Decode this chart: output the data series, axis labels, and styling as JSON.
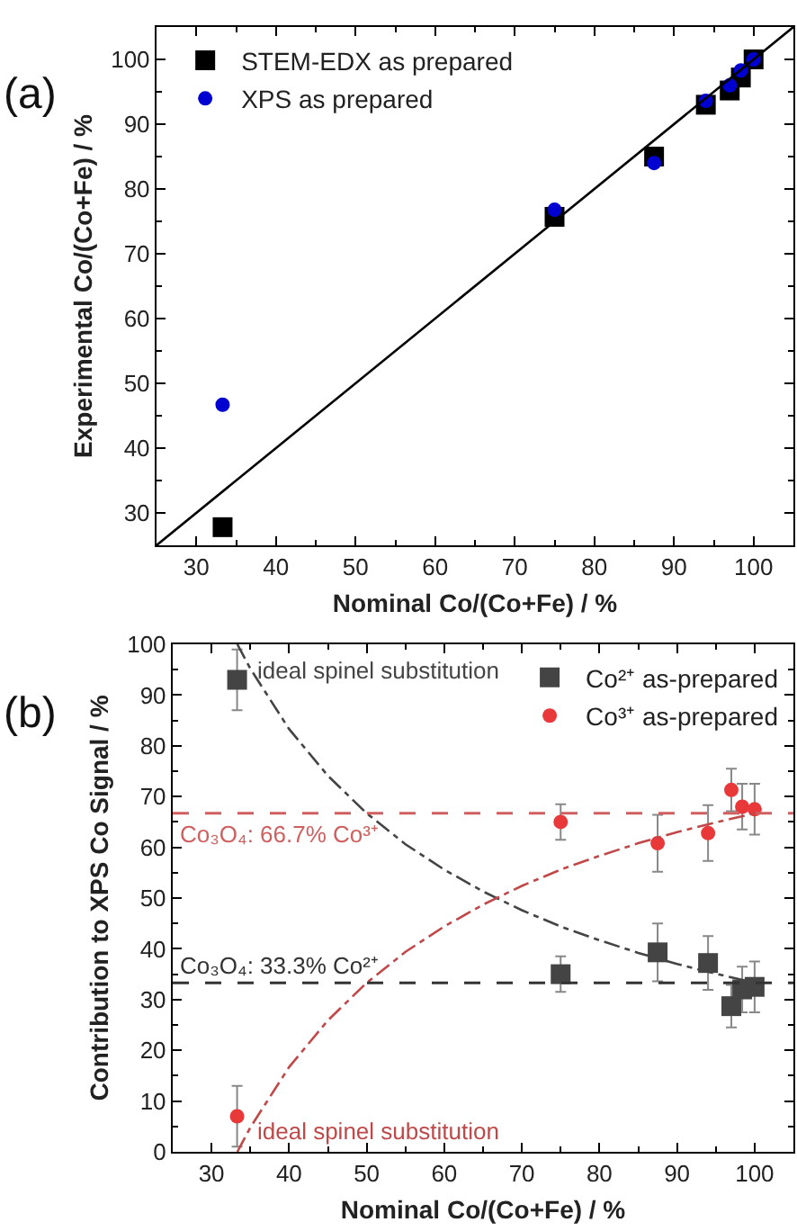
{
  "chart_data": [
    {
      "type": "scatter",
      "xlabel": "Nominal Co/(Co+Fe) / %",
      "ylabel": "Experimental Co/(Co+Fe) / %",
      "annotations": [
        "(a)"
      ],
      "xlim": [
        25,
        105
      ],
      "xticks": [
        30,
        40,
        50,
        60,
        70,
        80,
        90,
        100
      ],
      "ylim": [
        25,
        105
      ],
      "yticks": [
        30,
        40,
        50,
        60,
        70,
        80,
        90,
        100
      ],
      "legend": "top left",
      "series": [
        {
          "name": "STEM-EDX as prepared",
          "color": "#000000",
          "marker": "square",
          "x": [
            33.3,
            75,
            87.5,
            94,
            97,
            98.4,
            100
          ],
          "values": [
            27.8,
            75.7,
            85,
            93,
            95.2,
            97.2,
            100
          ]
        },
        {
          "name": "XPS as prepared",
          "color": "#0000d0",
          "marker": "circle",
          "x": [
            33.3,
            75,
            87.5,
            94,
            97,
            98.4,
            100
          ],
          "values": [
            46.7,
            76.8,
            84,
            93.6,
            96,
            98.3,
            100
          ]
        },
        {
          "type": "line",
          "color": "#000000",
          "marker": "none",
          "line_style": "solid",
          "x": [
            25,
            105
          ],
          "values": [
            25,
            105
          ]
        }
      ]
    },
    {
      "type": "scatter",
      "xlabel": "Nominal Co/(Co+Fe) / %",
      "ylabel": "Contribution to XPS Co Signal / %",
      "annotations": [
        "(b)",
        {
          "text": "ideal spinel substitution",
          "x": 35.5,
          "y": 95
        },
        {
          "text": "ideal spinel substitution",
          "x": 35.5,
          "y": 4
        }
      ],
      "xlim": [
        25,
        105
      ],
      "xticks": [
        30,
        40,
        50,
        60,
        70,
        80,
        90,
        100
      ],
      "ylim": [
        0,
        100
      ],
      "yticks": [
        0,
        10,
        20,
        30,
        40,
        50,
        60,
        70,
        80,
        90,
        100
      ],
      "legend": "top right",
      "ref_lines": [
        {
          "axis": "y",
          "value": 66.7,
          "label": "Co₃O₄: 66.7% Co³⁺",
          "color": "#d06060",
          "line_style": "dashed"
        },
        {
          "axis": "y",
          "value": 33.3,
          "label": "Co₃O₄: 33.3% Co²⁺",
          "color": "#333333",
          "line_style": "dashed"
        }
      ],
      "series": [
        {
          "name": "Co²⁺ as-prepared",
          "color": "#444444",
          "marker": "square",
          "x": [
            33.3,
            75,
            87.5,
            94,
            97,
            98.4,
            100
          ],
          "values": [
            93,
            35,
            39.3,
            37.2,
            28.7,
            32,
            32.5
          ],
          "errors": [
            6,
            3.5,
            5.7,
            5.3,
            4.2,
            4.5,
            5
          ]
        },
        {
          "name": "Co³⁺ as-prepared",
          "color": "#e8383a",
          "marker": "circle",
          "x": [
            33.3,
            75,
            87.5,
            94,
            97,
            98.4,
            100
          ],
          "values": [
            7,
            65,
            60.8,
            62.8,
            71.3,
            68,
            67.5
          ],
          "errors": [
            6,
            3.5,
            5.6,
            5.5,
            4.2,
            4.5,
            5
          ]
        },
        {
          "type": "line",
          "color": "#444444",
          "marker": "none",
          "line_style": "dashdot",
          "x": [
            33.33,
            35,
            40,
            45,
            50,
            55,
            60,
            65,
            70,
            75,
            80,
            85,
            90,
            95,
            100
          ],
          "values": [
            100,
            95.2,
            83.3,
            74.1,
            66.7,
            60.6,
            55.6,
            51.3,
            47.6,
            44.4,
            41.7,
            39.2,
            37.0,
            35.1,
            33.3
          ]
        },
        {
          "type": "line",
          "color": "#c04848",
          "marker": "none",
          "line_style": "dashdot",
          "x": [
            33.33,
            35,
            40,
            45,
            50,
            55,
            60,
            65,
            70,
            75,
            80,
            85,
            90,
            95,
            100
          ],
          "values": [
            0,
            4.8,
            16.7,
            25.9,
            33.3,
            39.4,
            44.4,
            48.7,
            52.4,
            55.6,
            58.3,
            60.8,
            63.0,
            64.9,
            66.7
          ]
        }
      ]
    }
  ]
}
